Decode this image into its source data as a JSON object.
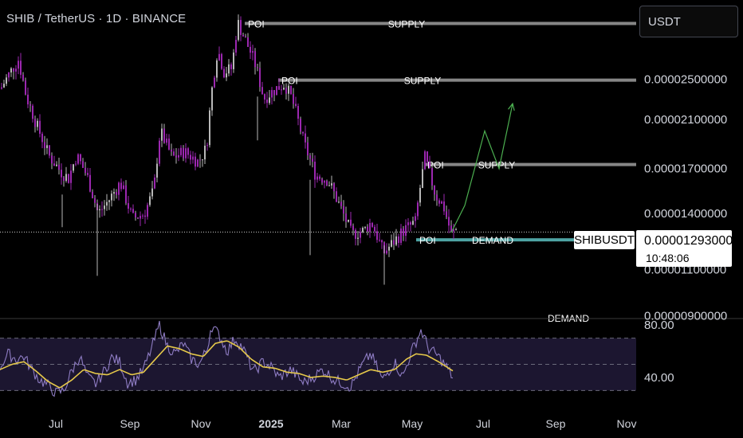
{
  "header": {
    "title": "SHIB / TetherUS · 1D · BINANCE",
    "currency_button": "USDT"
  },
  "price_tag": {
    "symbol": "SHIBUSDT",
    "price": "0.00001293000",
    "countdown": "10:48:06"
  },
  "colors": {
    "background": "#000000",
    "candle": "#b8b8b8",
    "candle_accent": "#9c27b0",
    "zone_gray": "#9e9e9e",
    "zone_demand": "#5cc0c0",
    "projection": "#4caf50",
    "rsi": "#8e7cc3",
    "rsi_ma": "#e6c94a",
    "axis_text": "#d1d4dc"
  },
  "chart_data": [
    {
      "type": "candlestick",
      "title": "SHIB / TetherUS · 1D · BINANCE",
      "y_scale": "log",
      "ylim": [
        8.9e-06,
        3.4e-05
      ],
      "price_axis_labels": [
        "0.00002500000",
        "0.00002100000",
        "0.00001700000",
        "0.00001400000",
        "0.00001100000",
        "0.00000900000"
      ],
      "price_axis_values": [
        2.5e-05,
        2.1e-05,
        1.7e-05,
        1.4e-05,
        1.1e-05,
        9e-06
      ],
      "time_axis_labels": [
        "Jul",
        "Sep",
        "Nov",
        "2025",
        "Mar",
        "May",
        "Jul",
        "Sep",
        "Nov"
      ],
      "time_axis_bold": "2025",
      "last_price": 1.293e-05,
      "price_path": [
        [
          0,
          2.4e-05
        ],
        [
          10,
          2.55e-05
        ],
        [
          22,
          2.72e-05
        ],
        [
          32,
          2.32e-05
        ],
        [
          45,
          2.05e-05
        ],
        [
          60,
          1.8e-05
        ],
        [
          75,
          1.68e-05
        ],
        [
          85,
          1.63e-05
        ],
        [
          95,
          1.8e-05
        ],
        [
          108,
          1.65e-05
        ],
        [
          122,
          1.4e-05
        ],
        [
          135,
          1.48e-05
        ],
        [
          150,
          1.6e-05
        ],
        [
          165,
          1.37e-05
        ],
        [
          180,
          1.4e-05
        ],
        [
          192,
          1.55e-05
        ],
        [
          200,
          2e-05
        ],
        [
          215,
          1.78e-05
        ],
        [
          230,
          1.83e-05
        ],
        [
          248,
          1.75e-05
        ],
        [
          258,
          1.86e-05
        ],
        [
          265,
          2.4e-05
        ],
        [
          272,
          2.85e-05
        ],
        [
          280,
          2.58e-05
        ],
        [
          290,
          2.62e-05
        ],
        [
          297,
          3.2e-05
        ],
        [
          305,
          3e-05
        ],
        [
          318,
          2.7e-05
        ],
        [
          330,
          2.3e-05
        ],
        [
          345,
          2.4e-05
        ],
        [
          356,
          2.45e-05
        ],
        [
          365,
          2.3e-05
        ],
        [
          380,
          1.9e-05
        ],
        [
          395,
          1.65e-05
        ],
        [
          410,
          1.62e-05
        ],
        [
          425,
          1.45e-05
        ],
        [
          440,
          1.28e-05
        ],
        [
          455,
          1.3e-05
        ],
        [
          465,
          1.35e-05
        ],
        [
          480,
          1.18e-05
        ],
        [
          495,
          1.25e-05
        ],
        [
          505,
          1.3e-05
        ],
        [
          520,
          1.35e-05
        ],
        [
          532,
          1.78e-05
        ],
        [
          545,
          1.52e-05
        ],
        [
          555,
          1.45e-05
        ],
        [
          565,
          1.28e-05
        ],
        [
          572,
          1.31e-05
        ]
      ],
      "zones": [
        {
          "price": 3.18e-05,
          "x_from": 307,
          "x_to": 798,
          "poi": "POI",
          "label": "SUPPLY",
          "label_x": 510,
          "type": "supply"
        },
        {
          "price": 2.49e-05,
          "x_from": 349,
          "x_to": 798,
          "poi": "POI",
          "label": "SUPPLY",
          "label_x": 530,
          "type": "supply"
        },
        {
          "price": 1.73e-05,
          "x_from": 532,
          "x_to": 798,
          "poi": "POI",
          "label": "SUPPLY",
          "label_x": 623,
          "type": "supply"
        },
        {
          "price": 1.25e-05,
          "x_from": 522,
          "x_to": 720,
          "poi": "POI",
          "label": "DEMAND",
          "label_x": 618,
          "type": "demand"
        }
      ],
      "offscreen_label": {
        "text": "DEMAND",
        "x": 713
      },
      "projection": [
        [
          566,
          1.29e-05
        ],
        [
          583,
          1.45e-05
        ],
        [
          608,
          2e-05
        ],
        [
          626,
          1.7e-05
        ],
        [
          643,
          2.25e-05
        ]
      ]
    },
    {
      "type": "line",
      "title": "RSI",
      "ylim": [
        15,
        85
      ],
      "y_tick_labels": [
        "80.00",
        "40.00"
      ],
      "y_tick_values": [
        80,
        40
      ],
      "levels": [
        70,
        50,
        30
      ],
      "series": [
        {
          "color": "#8e7cc3",
          "values": [
            [
              0,
              48
            ],
            [
              10,
              58
            ],
            [
              20,
              54
            ],
            [
              30,
              56
            ],
            [
              40,
              46
            ],
            [
              50,
              38
            ],
            [
              60,
              34
            ],
            [
              70,
              28
            ],
            [
              80,
              30
            ],
            [
              90,
              45
            ],
            [
              100,
              56
            ],
            [
              110,
              40
            ],
            [
              120,
              35
            ],
            [
              130,
              44
            ],
            [
              140,
              55
            ],
            [
              150,
              52
            ],
            [
              160,
              36
            ],
            [
              170,
              38
            ],
            [
              180,
              46
            ],
            [
              190,
              62
            ],
            [
              200,
              80
            ],
            [
              210,
              64
            ],
            [
              220,
              58
            ],
            [
              230,
              66
            ],
            [
              240,
              54
            ],
            [
              250,
              50
            ],
            [
              260,
              62
            ],
            [
              265,
              80
            ],
            [
              275,
              72
            ],
            [
              285,
              60
            ],
            [
              295,
              70
            ],
            [
              305,
              62
            ],
            [
              318,
              44
            ],
            [
              330,
              52
            ],
            [
              340,
              48
            ],
            [
              350,
              40
            ],
            [
              365,
              46
            ],
            [
              380,
              36
            ],
            [
              392,
              40
            ],
            [
              405,
              46
            ],
            [
              420,
              38
            ],
            [
              440,
              33
            ],
            [
              455,
              50
            ],
            [
              465,
              58
            ],
            [
              480,
              38
            ],
            [
              495,
              52
            ],
            [
              505,
              40
            ],
            [
              515,
              58
            ],
            [
              528,
              76
            ],
            [
              538,
              62
            ],
            [
              550,
              56
            ],
            [
              560,
              48
            ],
            [
              568,
              40
            ]
          ]
        },
        {
          "color": "#e6c94a",
          "values": [
            [
              0,
              46
            ],
            [
              15,
              50
            ],
            [
              30,
              52
            ],
            [
              45,
              45
            ],
            [
              60,
              37
            ],
            [
              75,
              32
            ],
            [
              90,
              38
            ],
            [
              105,
              46
            ],
            [
              120,
              43
            ],
            [
              135,
              42
            ],
            [
              150,
              46
            ],
            [
              165,
              42
            ],
            [
              180,
              44
            ],
            [
              195,
              54
            ],
            [
              210,
              64
            ],
            [
              225,
              62
            ],
            [
              240,
              58
            ],
            [
              255,
              56
            ],
            [
              270,
              66
            ],
            [
              285,
              68
            ],
            [
              300,
              63
            ],
            [
              315,
              54
            ],
            [
              330,
              48
            ],
            [
              345,
              47
            ],
            [
              360,
              44
            ],
            [
              375,
              43
            ],
            [
              390,
              40
            ],
            [
              405,
              41
            ],
            [
              420,
              40
            ],
            [
              435,
              38
            ],
            [
              450,
              42
            ],
            [
              465,
              46
            ],
            [
              480,
              44
            ],
            [
              495,
              46
            ],
            [
              510,
              54
            ],
            [
              522,
              58
            ],
            [
              535,
              57
            ],
            [
              550,
              52
            ],
            [
              568,
              45
            ]
          ]
        }
      ]
    }
  ]
}
